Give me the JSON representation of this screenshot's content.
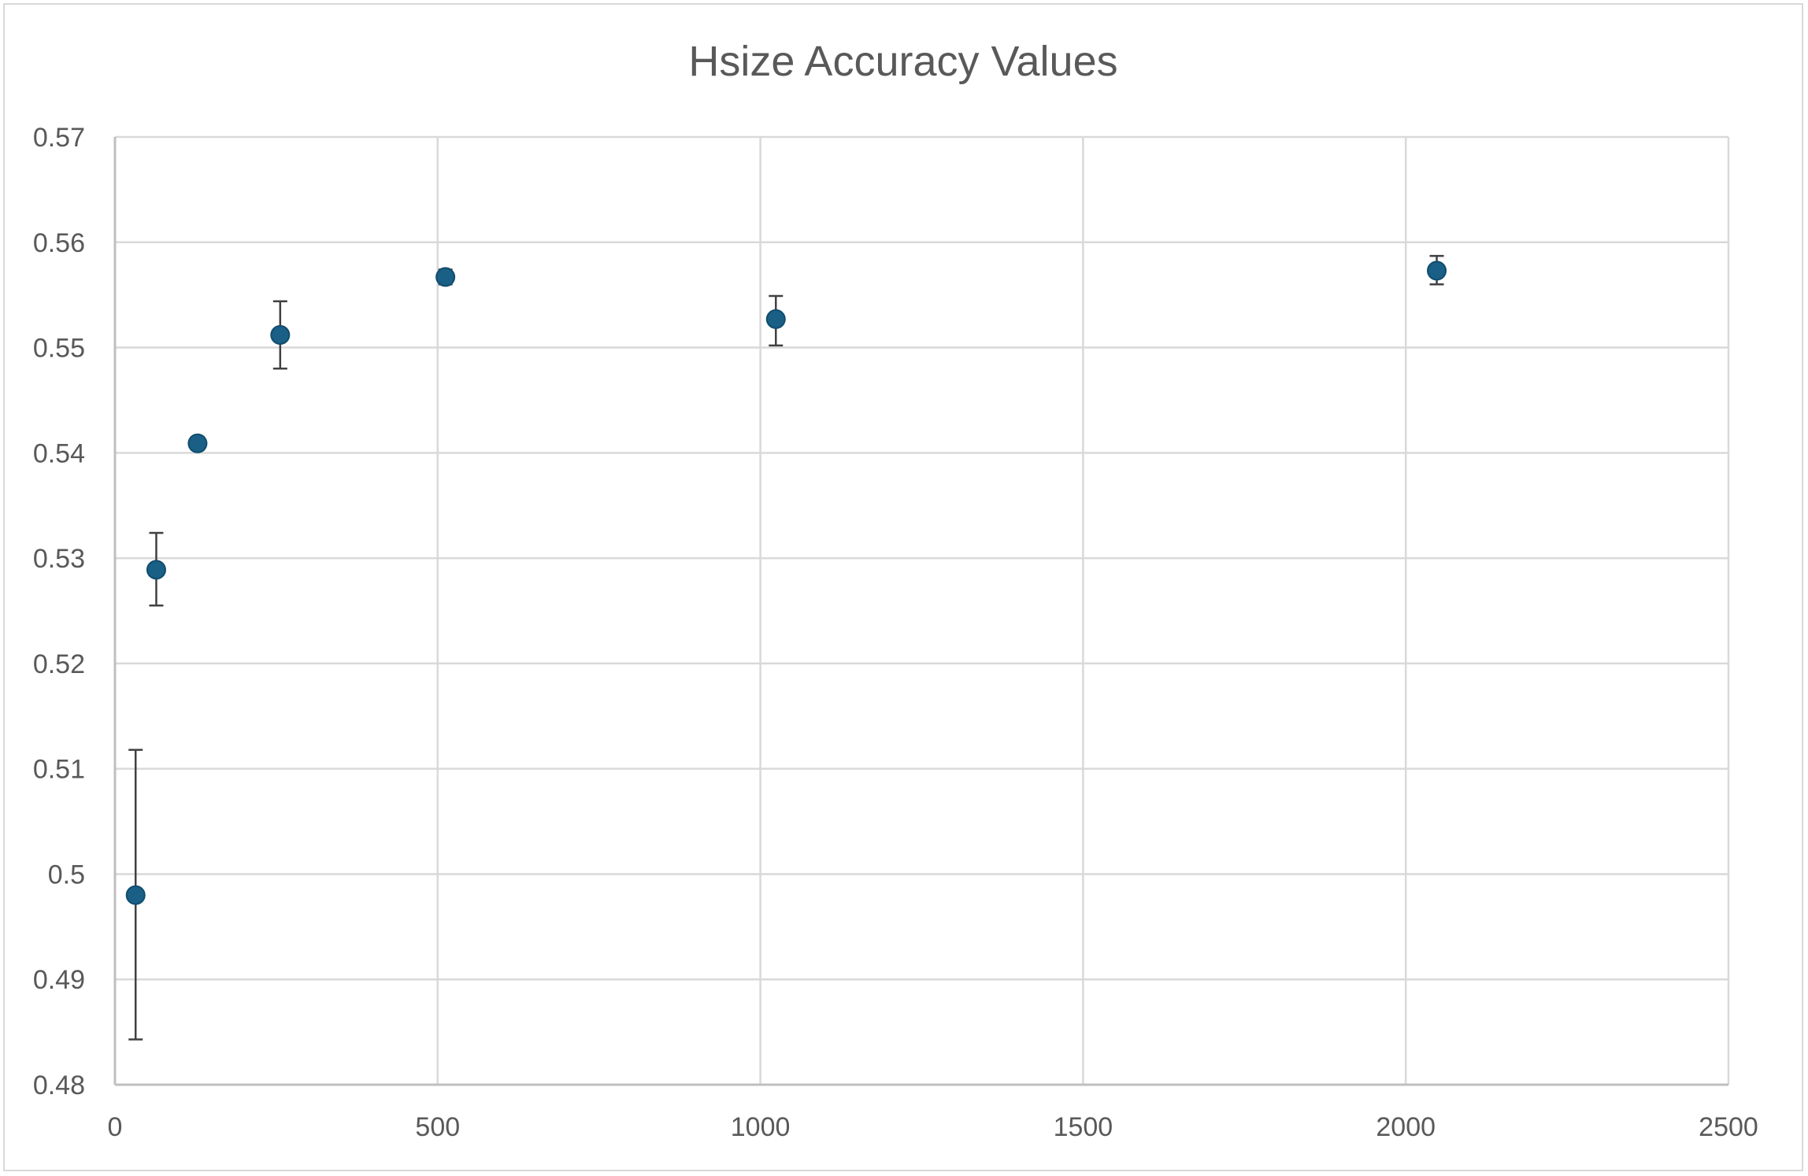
{
  "chart_data": {
    "type": "scatter",
    "title": "Hsize Accuracy Values",
    "xlabel": "",
    "ylabel": "",
    "xlim": [
      0,
      2500
    ],
    "ylim": [
      0.48,
      0.57
    ],
    "x_ticks": [
      0,
      500,
      1000,
      1500,
      2000,
      2500
    ],
    "y_ticks": [
      0.48,
      0.49,
      0.5,
      0.51,
      0.52,
      0.53,
      0.54,
      0.55,
      0.56,
      0.57
    ],
    "x_tick_labels": [
      "0",
      "500",
      "1000",
      "1500",
      "2000",
      "2500"
    ],
    "y_tick_labels": [
      "0.48",
      "0.49",
      "0.5",
      "0.51",
      "0.52",
      "0.53",
      "0.54",
      "0.55",
      "0.56",
      "0.57"
    ],
    "grid": true,
    "legend": "none",
    "marker_color": "#1a5f85",
    "series": [
      {
        "x": [
          32,
          64,
          128,
          256,
          512,
          1024,
          2048
        ],
        "y": [
          0.498,
          0.5289,
          0.5409,
          0.5512,
          0.5567,
          0.5527,
          0.5573
        ],
        "error_low": [
          0.4843,
          0.5255,
          0.5403,
          0.548,
          0.556,
          0.5502,
          0.556
        ],
        "error_high": [
          0.5118,
          0.5324,
          0.5415,
          0.5544,
          0.5574,
          0.5549,
          0.5587
        ]
      }
    ]
  }
}
